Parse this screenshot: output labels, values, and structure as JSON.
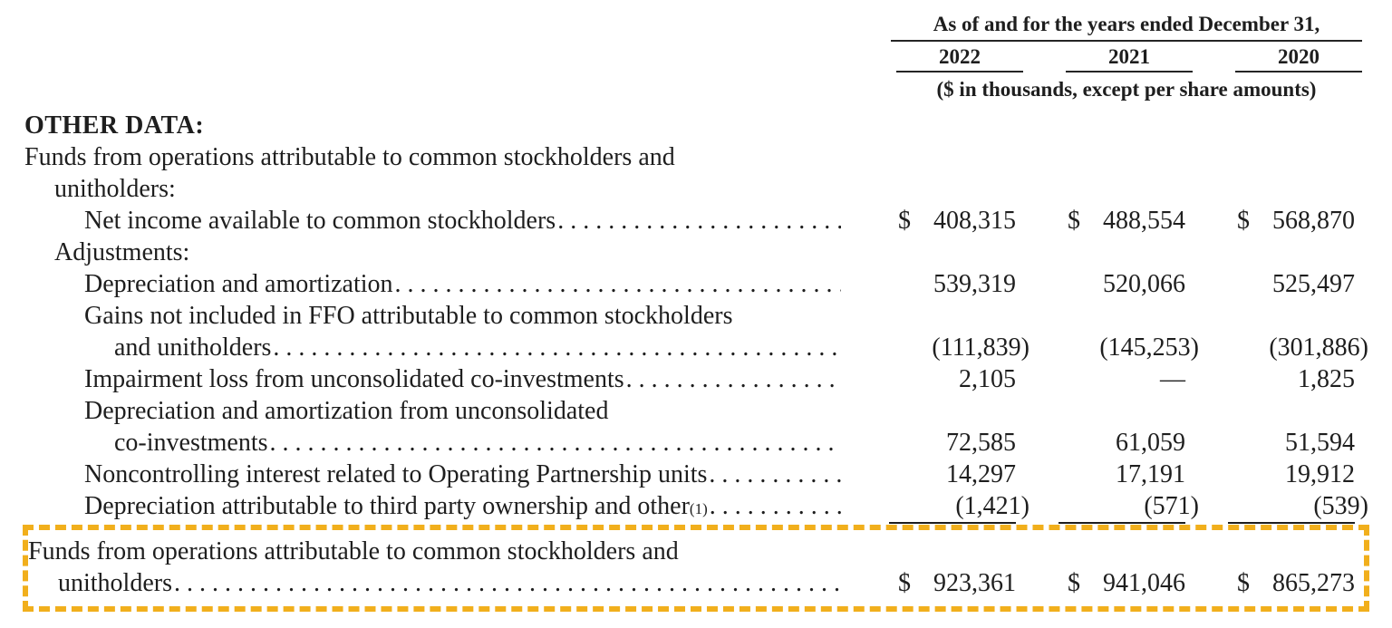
{
  "header": {
    "title": "As of and for the years ended December 31,",
    "years": [
      "2022",
      "2021",
      "2020"
    ],
    "subtitle": "($ in thousands, except per share amounts)"
  },
  "rows": [
    {
      "type": "section",
      "text": "OTHER DATA:",
      "indent": 0,
      "bold": true
    },
    {
      "type": "text",
      "text": "Funds from operations attributable to common stockholders and",
      "indent": 0
    },
    {
      "type": "text",
      "text": "unitholders:",
      "indent": 1
    },
    {
      "type": "data",
      "label": "Net income available to common stockholders",
      "indent": 2,
      "values": [
        {
          "cur": "$",
          "amt": "408,315"
        },
        {
          "cur": "$",
          "amt": "488,554"
        },
        {
          "cur": "$",
          "amt": "568,870"
        }
      ]
    },
    {
      "type": "text",
      "text": "Adjustments:",
      "indent": 1
    },
    {
      "type": "data",
      "label": "Depreciation and amortization",
      "indent": 2,
      "values": [
        {
          "amt": "539,319"
        },
        {
          "amt": "520,066"
        },
        {
          "amt": "525,497"
        }
      ]
    },
    {
      "type": "text",
      "text": "Gains not included in FFO attributable to common stockholders",
      "indent": 2
    },
    {
      "type": "data",
      "label": "and unitholders",
      "indent": 3,
      "values": [
        {
          "amt": "(111,839)"
        },
        {
          "amt": "(145,253)"
        },
        {
          "amt": "(301,886)"
        }
      ]
    },
    {
      "type": "data",
      "label": "Impairment loss from unconsolidated co-investments",
      "indent": 2,
      "values": [
        {
          "amt": "2,105"
        },
        {
          "amt": "—"
        },
        {
          "amt": "1,825"
        }
      ]
    },
    {
      "type": "text",
      "text": "Depreciation and amortization from unconsolidated",
      "indent": 2
    },
    {
      "type": "data",
      "label": "co-investments",
      "indent": 3,
      "values": [
        {
          "amt": "72,585"
        },
        {
          "amt": "61,059"
        },
        {
          "amt": "51,594"
        }
      ]
    },
    {
      "type": "data",
      "label": "Noncontrolling interest related to Operating Partnership units",
      "indent": 2,
      "values": [
        {
          "amt": "14,297"
        },
        {
          "amt": "17,191"
        },
        {
          "amt": "19,912"
        }
      ]
    },
    {
      "type": "data",
      "label": "Depreciation attributable to third party ownership and other",
      "sup": "(1)",
      "indent": 2,
      "rule_below": true,
      "values": [
        {
          "amt": "(1,421)"
        },
        {
          "amt": "(571)"
        },
        {
          "amt": "(539)"
        }
      ]
    }
  ],
  "highlight": {
    "border_color": "#F1AF1C",
    "rows": [
      {
        "type": "text",
        "text": "Funds from operations attributable to common stockholders and",
        "indent": 0
      },
      {
        "type": "data",
        "label": "unitholders",
        "indent": 1,
        "values": [
          {
            "cur": "$",
            "amt": "923,361"
          },
          {
            "cur": "$",
            "amt": "941,046"
          },
          {
            "cur": "$",
            "amt": "865,273"
          }
        ]
      }
    ]
  }
}
